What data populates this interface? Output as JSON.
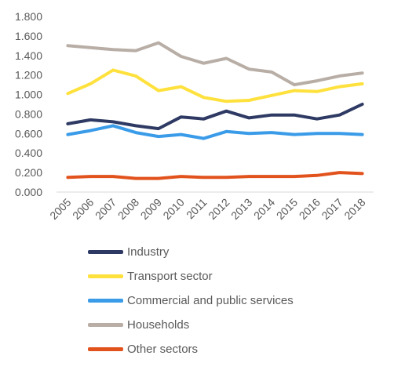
{
  "chart_data": {
    "type": "line",
    "x": [
      "2005",
      "2006",
      "2007",
      "2008",
      "2009",
      "2010",
      "2011",
      "2012",
      "2013",
      "2014",
      "2015",
      "2016",
      "2017",
      "2018"
    ],
    "ylim": [
      0,
      1.8
    ],
    "yticks": [
      "0.000",
      "0.200",
      "0.400",
      "0.600",
      "0.800",
      "1.000",
      "1.200",
      "1.400",
      "1.600",
      "1.800"
    ],
    "grid": false,
    "legend_position": "bottom",
    "series": [
      {
        "name": "Industry",
        "color": "#2e3a63",
        "values": [
          0.7,
          0.74,
          0.72,
          0.68,
          0.65,
          0.77,
          0.75,
          0.83,
          0.76,
          0.79,
          0.79,
          0.75,
          0.79,
          0.9
        ]
      },
      {
        "name": "Transport sector",
        "color": "#ffe13d",
        "values": [
          1.01,
          1.11,
          1.25,
          1.19,
          1.04,
          1.08,
          0.97,
          0.93,
          0.94,
          0.99,
          1.04,
          1.03,
          1.08,
          1.11
        ]
      },
      {
        "name": "Commercial and public services",
        "color": "#3a9be8",
        "values": [
          0.59,
          0.63,
          0.68,
          0.61,
          0.57,
          0.59,
          0.55,
          0.62,
          0.6,
          0.61,
          0.59,
          0.6,
          0.6,
          0.59
        ]
      },
      {
        "name": "Households",
        "color": "#b8aea6",
        "values": [
          1.5,
          1.48,
          1.46,
          1.45,
          1.53,
          1.39,
          1.32,
          1.37,
          1.26,
          1.23,
          1.1,
          1.14,
          1.19,
          1.22
        ]
      },
      {
        "name": "Other sectors",
        "color": "#e2521d",
        "values": [
          0.15,
          0.16,
          0.16,
          0.14,
          0.14,
          0.16,
          0.15,
          0.15,
          0.16,
          0.16,
          0.16,
          0.17,
          0.2,
          0.19
        ]
      }
    ]
  }
}
